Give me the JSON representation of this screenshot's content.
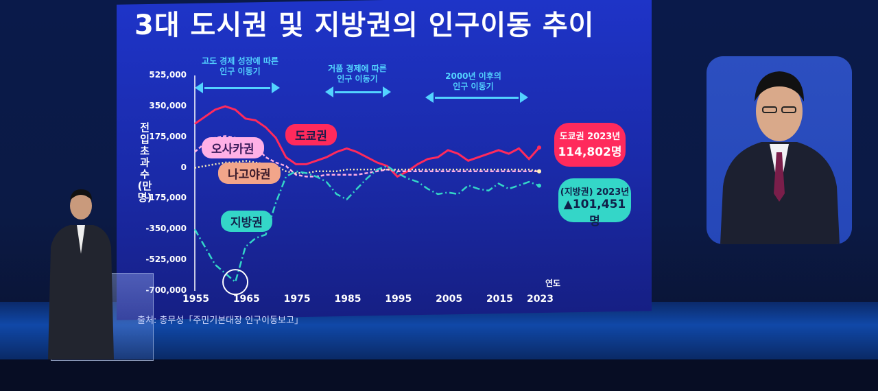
{
  "title": "3대 도시권 및 지방권의 인구이동 추이",
  "y_axis_label": "전입초과수(만 명)",
  "x_axis_unit": "연도",
  "source": "출처: 총무성「주민기본대장 인구이동보고」",
  "eras": [
    {
      "line1": "고도 경제 성장에 따른",
      "line2": "인구 이동기"
    },
    {
      "line1": "거품 경제에 따른",
      "line2": "인구 이동기"
    },
    {
      "line1": "2000년 이후의",
      "line2": "인구 이동기"
    }
  ],
  "series_labels": {
    "tokyo": "도쿄권",
    "osaka": "오사카권",
    "nagoya": "나고야권",
    "regional": "지방권"
  },
  "callouts": {
    "tokyo": {
      "line1": "도쿄권 2023년",
      "line2": "114,802명"
    },
    "regional": {
      "line1": "(지방권) 2023년",
      "line2": "▲101,451명"
    }
  },
  "colors": {
    "tokyo": "#ff2a5c",
    "osaka": "#ffb0e6",
    "nagoya": "#fff0b8",
    "regional": "#34d6c8",
    "era": "#53d3ff"
  },
  "chart_data": {
    "type": "line",
    "title": "3대 도시권 및 지방권의 인구이동 추이",
    "xlabel": "연도",
    "ylabel": "전입초과수(만 명)",
    "ylim": [
      -700000,
      525000
    ],
    "y_ticks": [
      525000,
      350000,
      175000,
      0,
      -175000,
      -350000,
      -525000,
      -700000
    ],
    "y_tick_labels": [
      "525,000",
      "350,000",
      "175,000",
      "0",
      "-175,000",
      "-350,000",
      "-525,000",
      "-700,000"
    ],
    "x_ticks": [
      1955,
      1965,
      1975,
      1985,
      1995,
      2005,
      2015,
      2023
    ],
    "x_tick_labels": [
      "1955",
      "1965",
      "1975",
      "1985",
      "1995",
      "2005",
      "2015",
      "2023"
    ],
    "x": [
      1955,
      1957,
      1959,
      1961,
      1963,
      1965,
      1967,
      1969,
      1971,
      1973,
      1975,
      1977,
      1979,
      1981,
      1983,
      1985,
      1987,
      1989,
      1991,
      1993,
      1995,
      1997,
      1999,
      2001,
      2003,
      2005,
      2007,
      2009,
      2011,
      2013,
      2015,
      2017,
      2019,
      2021,
      2023
    ],
    "series": [
      {
        "name": "도쿄권",
        "values": [
          250000,
          290000,
          330000,
          350000,
          330000,
          280000,
          270000,
          230000,
          170000,
          60000,
          20000,
          20000,
          40000,
          60000,
          90000,
          110000,
          90000,
          60000,
          30000,
          10000,
          -50000,
          -20000,
          20000,
          50000,
          60000,
          100000,
          80000,
          40000,
          60000,
          80000,
          100000,
          80000,
          110000,
          50000,
          114802
        ]
      },
      {
        "name": "오사카권",
        "values": [
          90000,
          140000,
          170000,
          180000,
          170000,
          150000,
          120000,
          60000,
          30000,
          10000,
          -40000,
          -50000,
          -50000,
          -40000,
          -40000,
          -40000,
          -40000,
          -30000,
          -20000,
          -10000,
          -20000,
          -20000,
          -20000,
          -20000,
          -20000,
          -20000,
          -20000,
          -20000,
          -20000,
          -20000,
          -20000,
          -20000,
          -20000,
          -20000,
          -20000
        ]
      },
      {
        "name": "나고야권",
        "values": [
          0,
          10000,
          20000,
          30000,
          30000,
          40000,
          30000,
          20000,
          10000,
          -20000,
          -30000,
          -30000,
          -20000,
          -20000,
          -20000,
          -10000,
          -10000,
          -10000,
          -10000,
          -10000,
          -10000,
          -10000,
          -10000,
          -10000,
          -10000,
          -10000,
          -10000,
          -10000,
          -10000,
          -10000,
          -10000,
          -10000,
          -10000,
          -10000,
          -20000
        ]
      },
      {
        "name": "지방권",
        "values": [
          -350000,
          -450000,
          -550000,
          -600000,
          -650000,
          -450000,
          -400000,
          -380000,
          -200000,
          -50000,
          -20000,
          -30000,
          -50000,
          -80000,
          -150000,
          -180000,
          -120000,
          -60000,
          -10000,
          10000,
          -30000,
          -60000,
          -80000,
          -120000,
          -150000,
          -140000,
          -150000,
          -100000,
          -120000,
          -130000,
          -90000,
          -120000,
          -100000,
          -80000,
          -101451
        ]
      }
    ]
  }
}
